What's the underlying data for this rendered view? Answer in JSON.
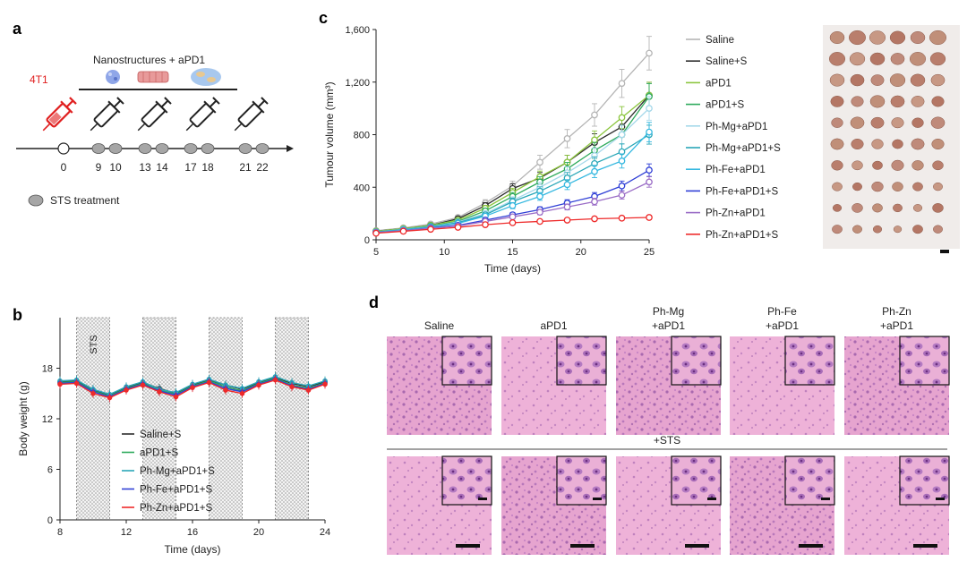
{
  "panel_labels": {
    "a": "a",
    "b": "b",
    "c": "c",
    "d": "d"
  },
  "schematic": {
    "cell_line": "4T1",
    "treatment_title": "Nanostructures + aPD1",
    "timeline_days": [
      "0",
      "9",
      "10",
      "13",
      "14",
      "17",
      "18",
      "21",
      "22"
    ],
    "sts_legend": "STS treatment"
  },
  "histology": {
    "column_headers": [
      {
        "line1": "Saline",
        "line2": ""
      },
      {
        "line1": "aPD1",
        "line2": ""
      },
      {
        "line1": "Ph-Mg",
        "line2": "+aPD1"
      },
      {
        "line1": "Ph-Fe",
        "line2": "+aPD1"
      },
      {
        "line1": "Ph-Zn",
        "line2": "+aPD1"
      }
    ],
    "sts_row_label": "+STS"
  },
  "colors": {
    "saline": "#b5b5b5",
    "saline_s": "#2b2b2b",
    "apd1": "#8cc63f",
    "apd1_s": "#2eaa5c",
    "phmg_apd1": "#a5d8ea",
    "phmg_apd1_s": "#2aa7b8",
    "phfe_apd1": "#35b8e0",
    "phfe_apd1_s": "#2f3fd6",
    "phzn_apd1": "#9a6cc6",
    "phzn_apd1_s": "#ee2a2a",
    "syringe": "#e02020"
  },
  "chart_data": [
    {
      "type": "line",
      "title": "",
      "xlabel": "Time (days)",
      "ylabel": "Tumour volume (mm³)",
      "xlim": [
        5,
        25
      ],
      "ylim": [
        0,
        1600
      ],
      "xticks": [
        "5",
        "10",
        "15",
        "20",
        "25"
      ],
      "yticks": [
        "0",
        "400",
        "800",
        "1,200",
        "1,600"
      ],
      "legend_position": "right",
      "x": [
        5,
        7,
        9,
        11,
        13,
        15,
        17,
        19,
        21,
        23,
        25
      ],
      "series": [
        {
          "name": "Saline",
          "values": [
            70,
            90,
            120,
            170,
            280,
            410,
            590,
            770,
            950,
            1190,
            1420
          ]
        },
        {
          "name": "Saline+S",
          "values": [
            65,
            85,
            110,
            160,
            260,
            390,
            470,
            590,
            740,
            860,
            1100
          ]
        },
        {
          "name": "aPD1",
          "values": [
            65,
            85,
            110,
            150,
            240,
            360,
            480,
            590,
            760,
            930,
            1100
          ]
        },
        {
          "name": "aPD1+S",
          "values": [
            60,
            80,
            105,
            140,
            220,
            330,
            440,
            540,
            680,
            800,
            1090
          ]
        },
        {
          "name": "Ph-Mg+aPD1",
          "values": [
            60,
            80,
            100,
            135,
            200,
            300,
            400,
            510,
            640,
            800,
            1000
          ]
        },
        {
          "name": "Ph-Mg+aPD1+S",
          "values": [
            60,
            78,
            98,
            130,
            190,
            290,
            370,
            470,
            580,
            670,
            800
          ]
        },
        {
          "name": "Ph-Fe+aPD1",
          "values": [
            58,
            75,
            95,
            125,
            180,
            260,
            330,
            420,
            520,
            600,
            820
          ]
        },
        {
          "name": "Ph-Fe+aPD1+S",
          "values": [
            55,
            70,
            90,
            110,
            150,
            190,
            230,
            280,
            330,
            410,
            530
          ]
        },
        {
          "name": "Ph-Zn+aPD1",
          "values": [
            55,
            70,
            88,
            105,
            140,
            175,
            210,
            250,
            290,
            340,
            440
          ]
        },
        {
          "name": "Ph-Zn+aPD1+S",
          "values": [
            50,
            65,
            80,
            95,
            115,
            130,
            140,
            150,
            160,
            165,
            170
          ]
        }
      ]
    },
    {
      "type": "line",
      "title": "",
      "xlabel": "Time (days)",
      "ylabel": "Body weight (g)",
      "xlim": [
        8,
        24
      ],
      "ylim": [
        0,
        24
      ],
      "xticks": [
        "8",
        "12",
        "16",
        "20",
        "24"
      ],
      "yticks": [
        "0",
        "6",
        "12",
        "18"
      ],
      "shaded_label": "STS",
      "legend_position": "bottom-left",
      "x": [
        8,
        9,
        10,
        11,
        12,
        13,
        14,
        15,
        16,
        17,
        18,
        19,
        20,
        21,
        22,
        23,
        24
      ],
      "series": [
        {
          "name": "Saline+S",
          "values": [
            16.4,
            16.5,
            15.4,
            14.8,
            15.7,
            16.3,
            15.6,
            15.0,
            16.0,
            16.6,
            16.0,
            15.5,
            16.3,
            16.9,
            16.2,
            15.8,
            16.4
          ]
        },
        {
          "name": "aPD1+S",
          "values": [
            16.3,
            16.4,
            15.3,
            14.7,
            15.6,
            16.2,
            15.4,
            14.9,
            15.9,
            16.5,
            15.8,
            15.3,
            16.2,
            16.8,
            16.0,
            15.6,
            16.3
          ]
        },
        {
          "name": "Ph-Mg+aPD1+S",
          "values": [
            16.5,
            16.6,
            15.5,
            14.9,
            15.8,
            16.4,
            15.5,
            15.1,
            16.1,
            16.7,
            16.0,
            15.6,
            16.4,
            17.0,
            16.3,
            15.9,
            16.5
          ]
        },
        {
          "name": "Ph-Fe+aPD1+S",
          "values": [
            16.2,
            16.3,
            15.2,
            14.6,
            15.5,
            16.1,
            15.3,
            14.8,
            15.8,
            16.4,
            15.6,
            15.2,
            16.1,
            16.7,
            15.9,
            15.5,
            16.2
          ]
        },
        {
          "name": "Ph-Zn+aPD1+S",
          "values": [
            16.1,
            16.2,
            15.0,
            14.5,
            15.4,
            16.0,
            15.2,
            14.6,
            15.7,
            16.3,
            15.4,
            15.0,
            16.0,
            16.6,
            15.8,
            15.4,
            16.1
          ]
        }
      ]
    }
  ]
}
